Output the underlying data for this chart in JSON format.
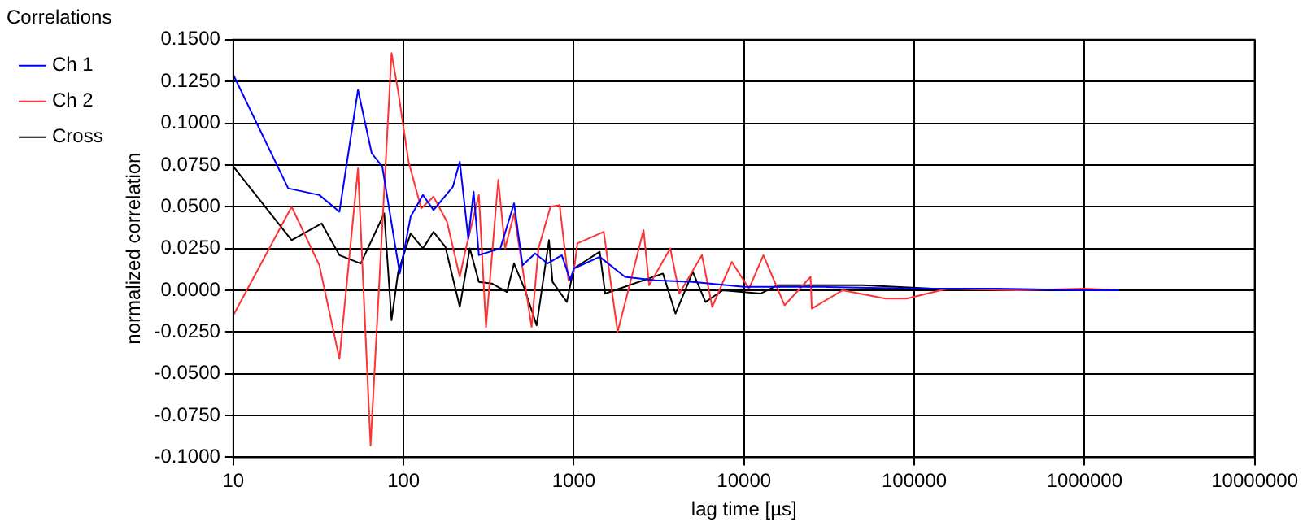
{
  "chart_data": {
    "type": "line",
    "title": "Correlations",
    "xlabel": "lag time [µs]",
    "ylabel": "normalized correlation",
    "log": "x",
    "xlim": [
      10,
      10000000
    ],
    "xticks": [
      10,
      100,
      1000,
      10000,
      100000,
      1000000,
      10000000
    ],
    "ylim": [
      -0.1,
      0.15
    ],
    "yticks": [
      {
        "value": -0.1,
        "label": "-0.1000"
      },
      {
        "value": -0.075,
        "label": "-0.0750"
      },
      {
        "value": -0.05,
        "label": "-0.0500"
      },
      {
        "value": -0.025,
        "label": "-0.0250"
      },
      {
        "value": 0,
        "label": "0.0000"
      },
      {
        "value": 0.025,
        "label": "0.0250"
      },
      {
        "value": 0.05,
        "label": "0.0500"
      },
      {
        "value": 0.075,
        "label": "0.0750"
      },
      {
        "value": 0.1,
        "label": "0.1000"
      },
      {
        "value": 0.125,
        "label": "0.1250"
      },
      {
        "value": 0.15,
        "label": "0.1500"
      }
    ],
    "grid": true,
    "legend": "left",
    "marker": "none",
    "line_style": "solid",
    "series": [
      {
        "name": "Ch 1",
        "color": "#0000ff",
        "x": [
          10,
          21,
          32,
          42,
          54,
          65,
          75,
          95,
          110,
          130,
          150,
          195,
          214,
          240,
          258,
          277,
          370,
          446,
          500,
          593,
          700,
          850,
          955,
          1000,
          1420,
          2000,
          3000,
          5000,
          10000,
          30000,
          100000,
          300000,
          1000000,
          1600000
        ],
        "values": [
          0.129,
          0.061,
          0.057,
          0.047,
          0.12,
          0.082,
          0.074,
          0.01,
          0.044,
          0.057,
          0.048,
          0.062,
          0.077,
          0.031,
          0.059,
          0.021,
          0.025,
          0.052,
          0.015,
          0.022,
          0.016,
          0.021,
          0.006,
          0.013,
          0.02,
          0.008,
          0.006,
          0.005,
          0.002,
          0.002,
          0.001,
          0.001,
          0.0,
          0.0
        ]
      },
      {
        "name": "Ch 2",
        "color": "#ff3333",
        "x": [
          10,
          22,
          32,
          42,
          54,
          64,
          85,
          93,
          107,
          127,
          150,
          180,
          214,
          230,
          277,
          305,
          360,
          395,
          446,
          565,
          620,
          730,
          825,
          930,
          1000,
          1050,
          1500,
          1810,
          2570,
          2770,
          3690,
          4170,
          5660,
          6500,
          8470,
          10700,
          13000,
          17300,
          24600,
          25000,
          38000,
          68000,
          90000,
          157000,
          400000,
          1000000,
          1600000
        ],
        "values": [
          -0.015,
          0.05,
          0.015,
          -0.041,
          0.073,
          -0.093,
          0.142,
          0.119,
          0.077,
          0.049,
          0.056,
          0.041,
          0.008,
          0.023,
          0.057,
          -0.022,
          0.066,
          0.025,
          0.046,
          -0.022,
          0.025,
          0.05,
          0.051,
          0.006,
          0.011,
          0.028,
          0.035,
          -0.025,
          0.036,
          0.003,
          0.025,
          -0.002,
          0.021,
          -0.01,
          0.017,
          0.001,
          0.021,
          -0.009,
          0.008,
          -0.011,
          0.0,
          -0.005,
          -0.005,
          0.001,
          0.0,
          0.001,
          0.0
        ]
      },
      {
        "name": "Cross",
        "color": "#000000",
        "x": [
          10,
          22,
          33,
          42,
          56,
          77,
          85,
          93,
          110,
          130,
          150,
          176,
          214,
          245,
          277,
          330,
          405,
          446,
          513,
          605,
          715,
          750,
          910,
          1000,
          1420,
          1530,
          3340,
          3960,
          5000,
          5940,
          7500,
          12500,
          15700,
          50000,
          200000,
          1000000,
          1600000
        ],
        "values": [
          0.074,
          0.03,
          0.04,
          0.021,
          0.016,
          0.046,
          -0.018,
          0.011,
          0.034,
          0.025,
          0.035,
          0.026,
          -0.01,
          0.025,
          0.005,
          0.004,
          -0.001,
          0.016,
          0.001,
          -0.021,
          0.03,
          0.005,
          -0.007,
          0.013,
          0.023,
          -0.002,
          0.01,
          -0.014,
          0.011,
          -0.007,
          0.0,
          -0.002,
          0.003,
          0.003,
          0.0,
          0.0,
          0.0
        ]
      }
    ]
  }
}
